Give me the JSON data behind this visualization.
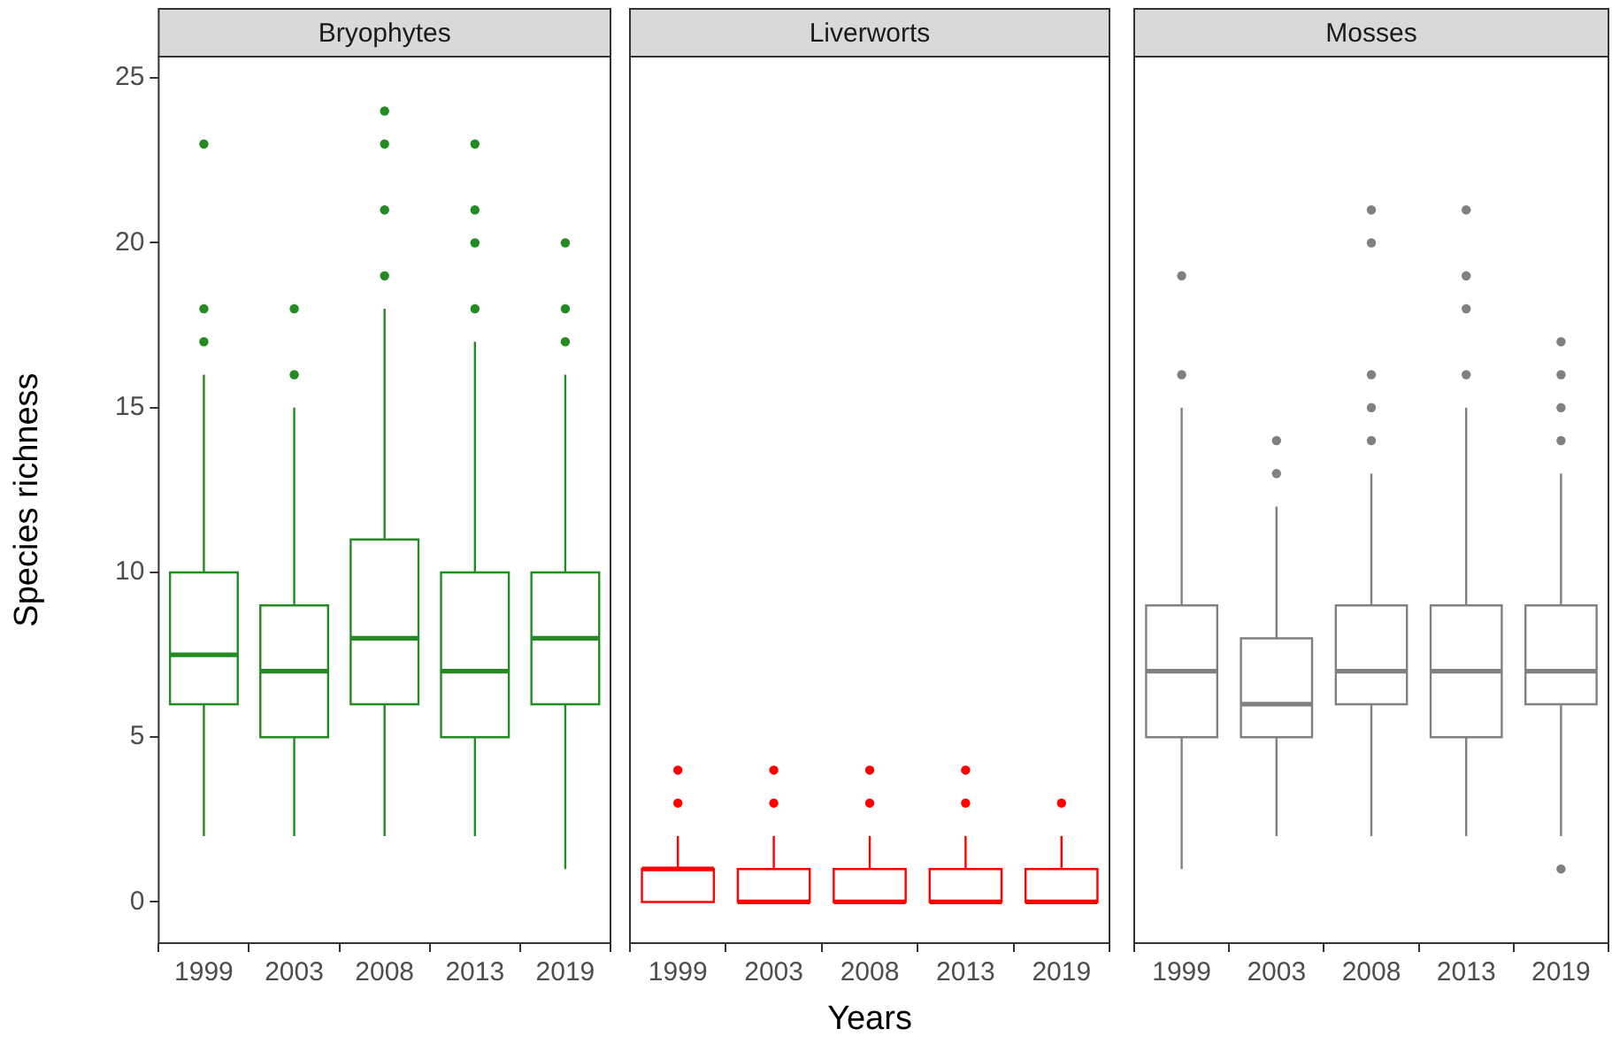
{
  "chart_data": [
    {
      "type": "box",
      "title": "Bryophytes",
      "ylabel": "Species richness",
      "categories": [
        "1999",
        "2003",
        "2008",
        "2013",
        "2019"
      ],
      "ylim": [
        -1.25,
        25.65
      ],
      "yticks": [
        0,
        5,
        10,
        15,
        20,
        25
      ],
      "grid": false,
      "series": [
        {
          "color": "#228b22",
          "boxes": [
            {
              "low": 2,
              "q1": 6,
              "median": 7.5,
              "q3": 10,
              "high": 16,
              "outliers": [
                17,
                18,
                23
              ]
            },
            {
              "low": 2,
              "q1": 5,
              "median": 7,
              "q3": 9,
              "high": 15,
              "outliers": [
                16,
                18
              ]
            },
            {
              "low": 2,
              "q1": 6,
              "median": 8,
              "q3": 11,
              "high": 18,
              "outliers": [
                19,
                21,
                23,
                24
              ]
            },
            {
              "low": 2,
              "q1": 5,
              "median": 7,
              "q3": 10,
              "high": 17,
              "outliers": [
                18,
                20,
                21,
                23
              ]
            },
            {
              "low": 1,
              "q1": 6,
              "median": 8,
              "q3": 10,
              "high": 16,
              "outliers": [
                17,
                18,
                20
              ]
            }
          ]
        }
      ]
    },
    {
      "type": "box",
      "title": "Liverworts",
      "xlabel": "Years",
      "categories": [
        "1999",
        "2003",
        "2008",
        "2013",
        "2019"
      ],
      "ylim": [
        -1.25,
        25.65
      ],
      "tick_labels": "x",
      "grid": false,
      "series": [
        {
          "color": "#ff0000",
          "boxes": [
            {
              "low": 0,
              "q1": 0,
              "median": 1,
              "q3": 1,
              "high": 2,
              "outliers": [
                3,
                4
              ]
            },
            {
              "low": 0,
              "q1": 0,
              "median": 0,
              "q3": 1,
              "high": 2,
              "outliers": [
                3,
                4
              ]
            },
            {
              "low": 0,
              "q1": 0,
              "median": 0,
              "q3": 1,
              "high": 2,
              "outliers": [
                3,
                4
              ]
            },
            {
              "low": 0,
              "q1": 0,
              "median": 0,
              "q3": 1,
              "high": 2,
              "outliers": [
                3,
                4
              ]
            },
            {
              "low": 0,
              "q1": 0,
              "median": 0,
              "q3": 1,
              "high": 2,
              "outliers": [
                3
              ]
            }
          ]
        }
      ]
    },
    {
      "type": "box",
      "title": "Mosses",
      "categories": [
        "1999",
        "2003",
        "2008",
        "2013",
        "2019"
      ],
      "ylim": [
        -1.25,
        25.65
      ],
      "tick_labels": "x",
      "grid": false,
      "series": [
        {
          "color": "#808080",
          "boxes": [
            {
              "low": 1,
              "q1": 5,
              "median": 7,
              "q3": 9,
              "high": 15,
              "outliers": [
                16,
                19
              ]
            },
            {
              "low": 2,
              "q1": 5,
              "median": 6,
              "q3": 8,
              "high": 12,
              "outliers": [
                13,
                14
              ]
            },
            {
              "low": 2,
              "q1": 6,
              "median": 7,
              "q3": 9,
              "high": 13,
              "outliers": [
                14,
                15,
                16,
                20,
                21
              ]
            },
            {
              "low": 2,
              "q1": 5,
              "median": 7,
              "q3": 9,
              "high": 15,
              "outliers": [
                16,
                18,
                19,
                21
              ]
            },
            {
              "low": 2,
              "q1": 6,
              "median": 7,
              "q3": 9,
              "high": 13,
              "outliers": [
                1,
                14,
                15,
                16,
                17
              ]
            }
          ]
        }
      ]
    }
  ]
}
